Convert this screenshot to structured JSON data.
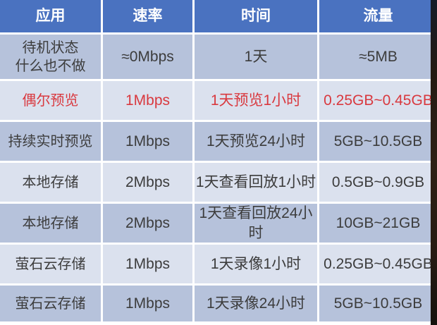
{
  "chart_data": {
    "type": "table",
    "columns": [
      "应用",
      "速率",
      "时间",
      "流量"
    ],
    "rows": [
      [
        "待机状态\n什么也不做",
        "≈0Mbps",
        "1天",
        "≈5MB"
      ],
      [
        "偶尔预览",
        "1Mbps",
        "1天预览1小时",
        "0.25GB~0.45GB"
      ],
      [
        "持续实时预览",
        "1Mbps",
        "1天预览24小时",
        "5GB~10.5GB"
      ],
      [
        "本地存储",
        "2Mbps",
        "1天查看回放1小时",
        "0.5GB~0.9GB"
      ],
      [
        "本地存储",
        "2Mbps",
        "1天查看回放24小时",
        "10GB~21GB"
      ],
      [
        "萤石云存储",
        "1Mbps",
        "1天录像1小时",
        "0.25GB~0.45GB"
      ],
      [
        "萤石云存储",
        "1Mbps",
        "1天录像24小时",
        "5GB~10.5GB"
      ]
    ],
    "highlight_row_index": 1,
    "layout": "4 columns, header row + 7 data rows, alternating row shading, white grid lines"
  },
  "colors": {
    "header_bg": "#4a72c0",
    "header_text": "#ffffff",
    "row_shade_dark": "#b6c2db",
    "row_shade_light": "#dbe1ee",
    "body_text": "#3c3c3c",
    "highlight_red": "#d9393f",
    "grid_lines": "#ffffff"
  }
}
